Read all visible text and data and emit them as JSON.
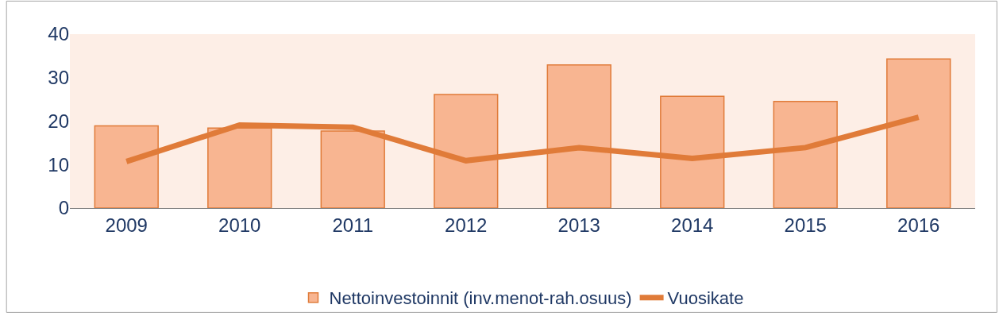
{
  "chart_data": {
    "type": "bar",
    "categories": [
      "2009",
      "2010",
      "2011",
      "2012",
      "2013",
      "2014",
      "2015",
      "2016"
    ],
    "series": [
      {
        "name": "Nettoinvestoinnit (inv.menot-rah.osuus)",
        "color": "#f8b591",
        "values": [
          18.9,
          18.4,
          17.7,
          26.1,
          32.9,
          25.7,
          24.5,
          34.3
        ]
      },
      {
        "name": "Vuosikate",
        "type": "line",
        "color": "#e07b39",
        "values": [
          10.7,
          19.1,
          18.6,
          10.9,
          13.9,
          11.4,
          13.9,
          20.9
        ]
      }
    ],
    "ylim": [
      0,
      40
    ],
    "yticks": [
      0,
      10,
      20,
      30,
      40
    ],
    "grid": false,
    "legend": "bottom",
    "marker": "none",
    "line_style": "solid"
  }
}
